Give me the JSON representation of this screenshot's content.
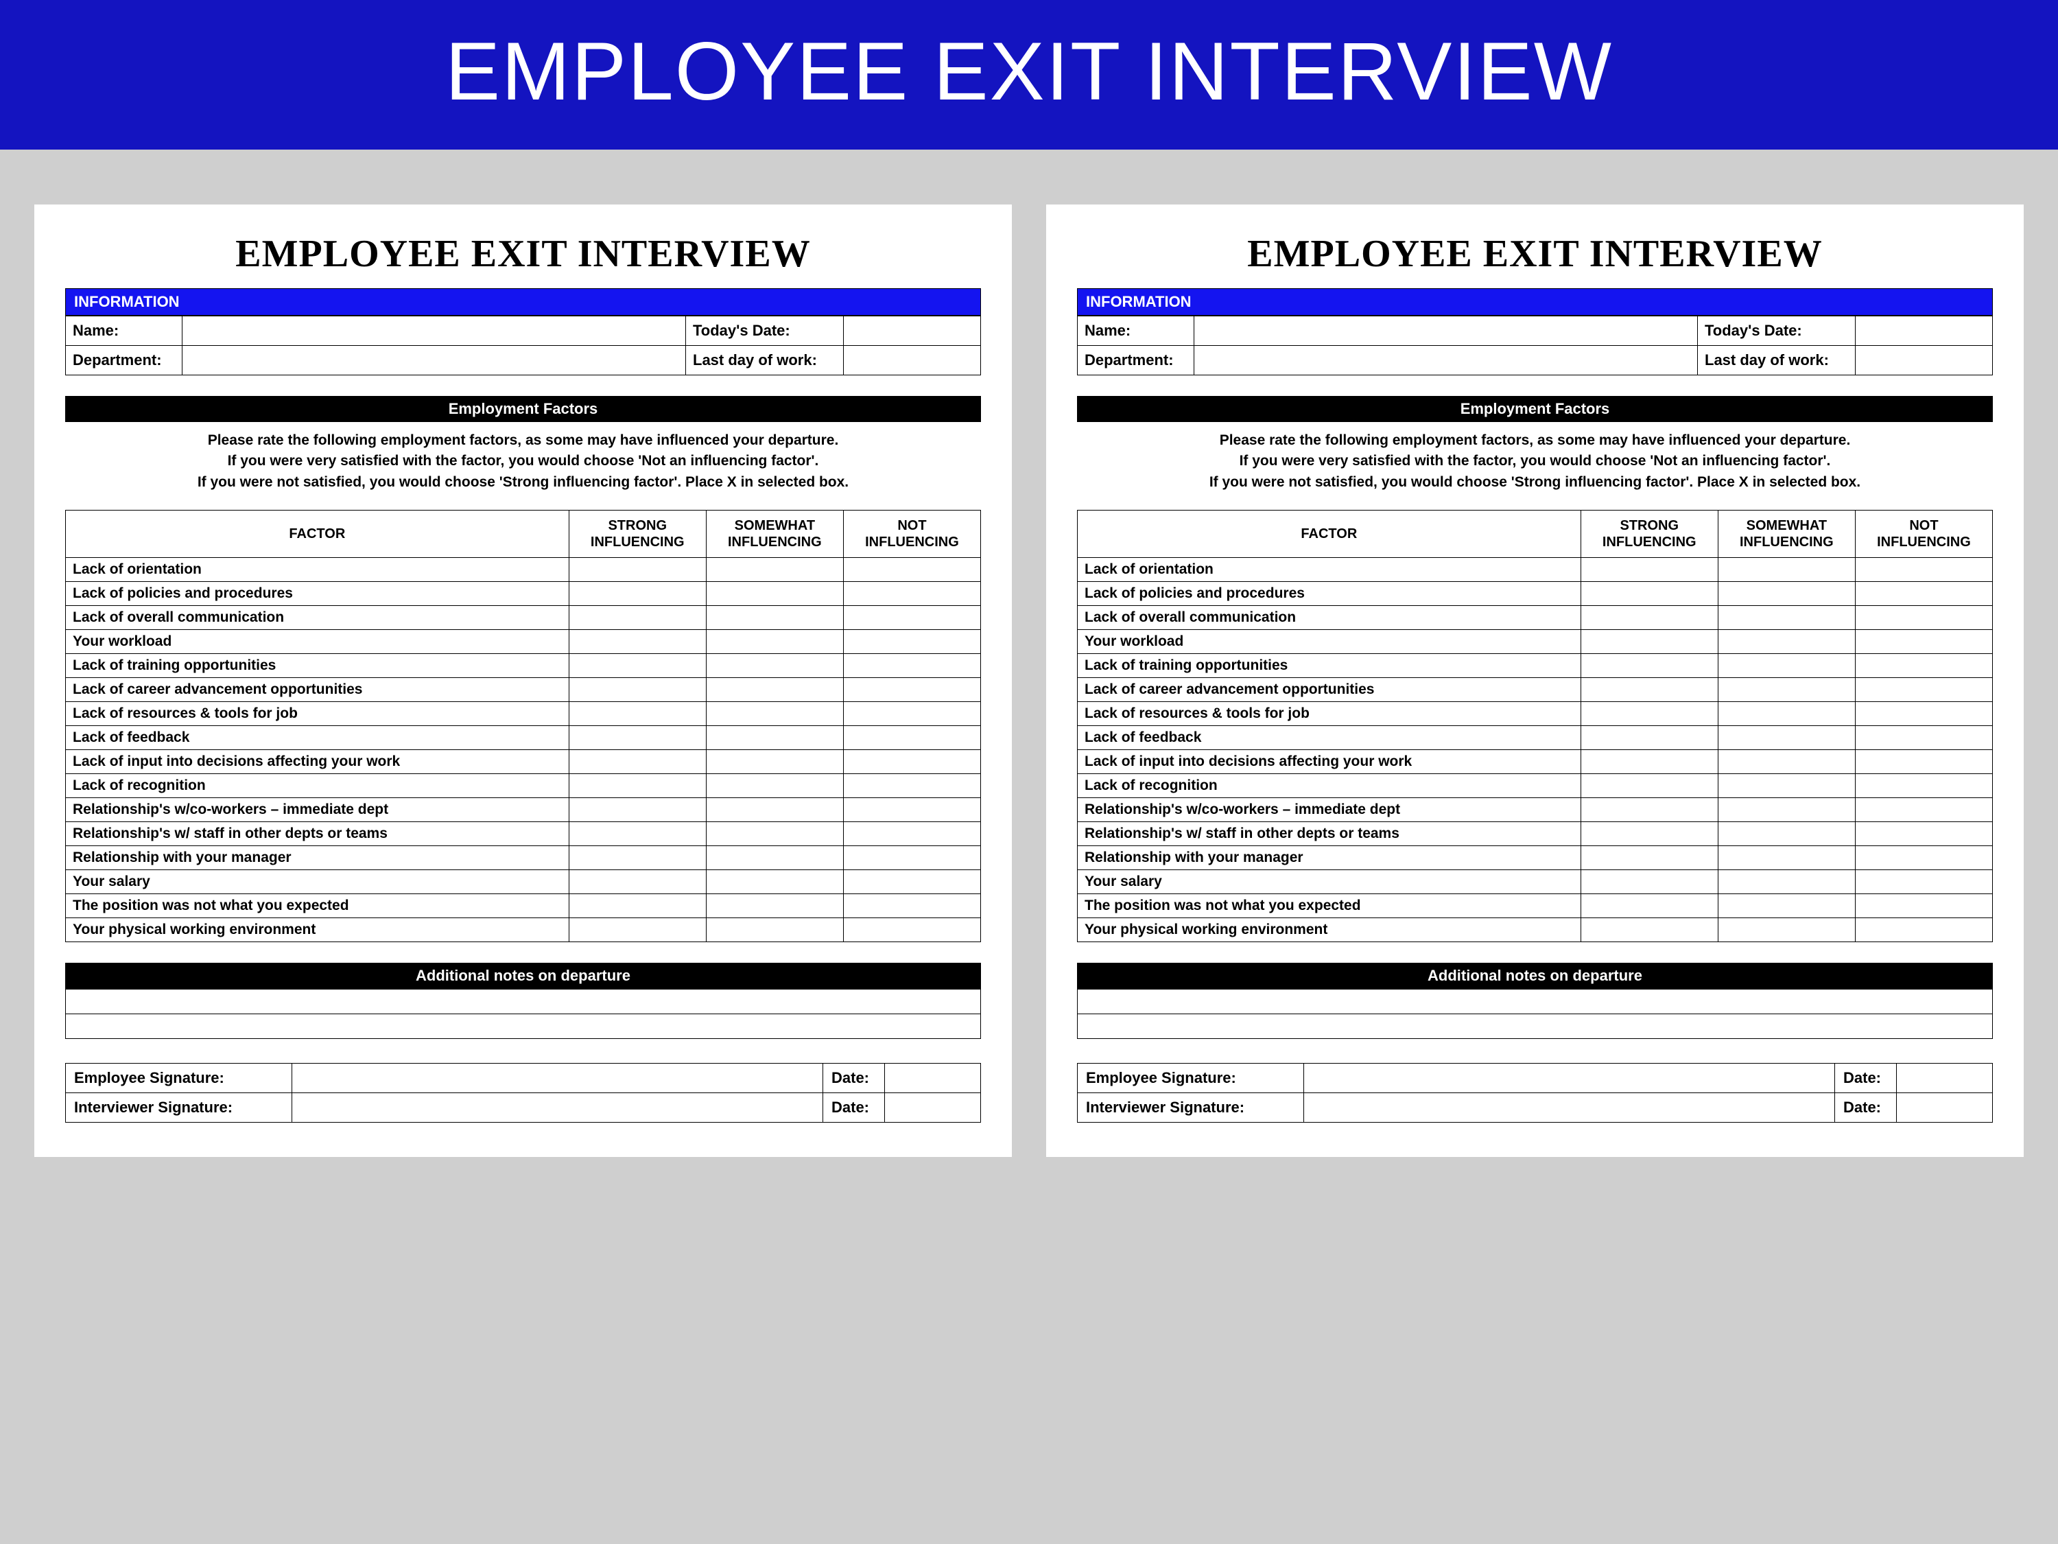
{
  "banner_title": "EMPLOYEE EXIT INTERVIEW",
  "colors": {
    "banner_bg": "#1414c0",
    "info_header_bg": "#1414f0",
    "section_bar_bg": "#000000",
    "page_bg": "#ffffff",
    "body_bg": "#cfcfcf",
    "border": "#000000",
    "text": "#000000",
    "banner_text": "#ffffff"
  },
  "typography": {
    "banner_fontsize": 120,
    "form_title_fontsize": 56,
    "form_title_family": "Georgia serif",
    "label_fontsize": 22,
    "cell_fontsize": 21,
    "header_fontsize": 20
  },
  "form": {
    "title": "EMPLOYEE EXIT INTERVIEW",
    "info_header": "INFORMATION",
    "info_rows": [
      {
        "left_label": "Name:",
        "left_value": "",
        "right_label": "Today's Date:",
        "right_value": ""
      },
      {
        "left_label": "Department:",
        "left_value": "",
        "right_label": "Last day of work:",
        "right_value": ""
      }
    ],
    "factors_section_title": "Employment Factors",
    "instructions_line1": "Please rate the following employment factors, as some may have influenced your departure.",
    "instructions_line2": "If you were very satisfied with the factor, you would choose 'Not an influencing factor'.",
    "instructions_line3": "If you were not satisfied, you would choose 'Strong influencing factor'. Place X in selected box.",
    "factor_columns": {
      "c0": "FACTOR",
      "c1_line1": "STRONG",
      "c1_line2": "INFLUENCING",
      "c2_line1": "SOMEWHAT",
      "c2_line2": "INFLUENCING",
      "c3_line1": "NOT",
      "c3_line2": "INFLUENCING"
    },
    "factors": [
      "Lack of orientation",
      "Lack of policies and procedures",
      "Lack of overall communication",
      "Your workload",
      "Lack of training opportunities",
      "Lack of career advancement opportunities",
      "Lack of resources & tools for job",
      "Lack of feedback",
      "Lack of input into decisions affecting your work",
      "Lack of recognition",
      "Relationship's w/co-workers – immediate dept",
      "Relationship's w/ staff in other depts or teams",
      "Relationship with your manager",
      "Your salary",
      "The position was not what you expected",
      "Your physical working environment"
    ],
    "notes_section_title": "Additional notes on departure",
    "notes_blank_rows": 2,
    "signature_rows": [
      {
        "label": "Employee Signature:",
        "value": "",
        "date_label": "Date:",
        "date_value": ""
      },
      {
        "label": "Interviewer Signature:",
        "value": "",
        "date_label": "Date:",
        "date_value": ""
      }
    ]
  }
}
